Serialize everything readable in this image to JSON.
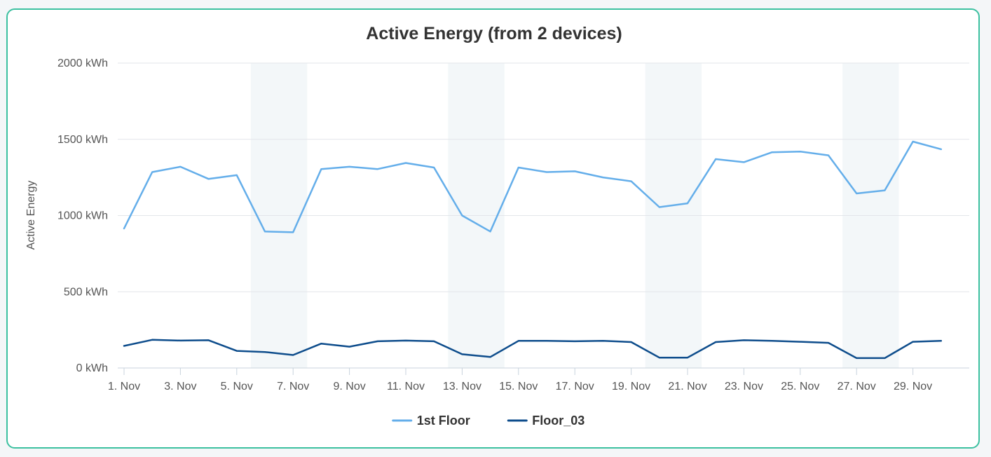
{
  "chart_data": {
    "type": "line",
    "title": "Active Energy (from 2 devices)",
    "ylabel": "Active Energy",
    "ylim": [
      0,
      2000
    ],
    "y_ticks": [
      0,
      500,
      1000,
      1500,
      2000
    ],
    "y_tick_labels": [
      "0 kWh",
      "500 kWh",
      "1000 kWh",
      "1500 kWh",
      "2000 kWh"
    ],
    "x": [
      "1. Nov",
      "2. Nov",
      "3. Nov",
      "4. Nov",
      "5. Nov",
      "6. Nov",
      "7. Nov",
      "8. Nov",
      "9. Nov",
      "10. Nov",
      "11. Nov",
      "12. Nov",
      "13. Nov",
      "14. Nov",
      "15. Nov",
      "16. Nov",
      "17. Nov",
      "18. Nov",
      "19. Nov",
      "20. Nov",
      "21. Nov",
      "22. Nov",
      "23. Nov",
      "24. Nov",
      "25. Nov",
      "26. Nov",
      "27. Nov",
      "28. Nov",
      "29. Nov",
      "30. Nov"
    ],
    "x_tick_labels": [
      "1. Nov",
      "3. Nov",
      "5. Nov",
      "7. Nov",
      "9. Nov",
      "11. Nov",
      "13. Nov",
      "15. Nov",
      "17. Nov",
      "19. Nov",
      "21. Nov",
      "23. Nov",
      "25. Nov",
      "27. Nov",
      "29. Nov"
    ],
    "weekend_bands": [
      [
        "6. Nov",
        "7. Nov"
      ],
      [
        "13. Nov",
        "14. Nov"
      ],
      [
        "20. Nov",
        "21. Nov"
      ],
      [
        "27. Nov",
        "28. Nov"
      ]
    ],
    "series": [
      {
        "name": "1st Floor",
        "color": "#64aeea",
        "values": [
          915,
          1285,
          1320,
          1240,
          1265,
          895,
          890,
          1305,
          1320,
          1305,
          1345,
          1315,
          1000,
          895,
          1315,
          1285,
          1290,
          1250,
          1225,
          1055,
          1080,
          1370,
          1350,
          1415,
          1420,
          1395,
          1145,
          1165,
          1485,
          1435
        ]
      },
      {
        "name": "Floor_03",
        "color": "#0e4d8c",
        "values": [
          145,
          185,
          180,
          182,
          112,
          105,
          85,
          160,
          140,
          175,
          180,
          175,
          90,
          72,
          178,
          178,
          175,
          178,
          170,
          68,
          68,
          170,
          182,
          178,
          172,
          165,
          65,
          65,
          172,
          178
        ]
      }
    ],
    "grid": true,
    "legend_position": "bottom-center"
  }
}
